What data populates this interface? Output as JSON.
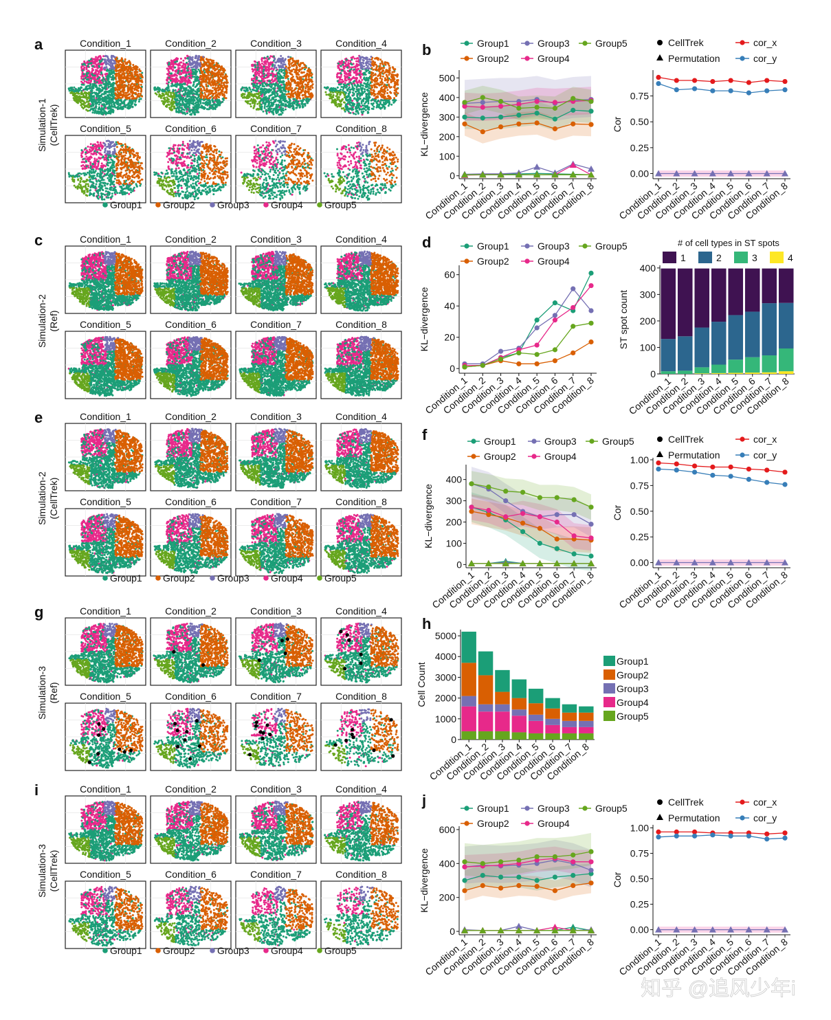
{
  "colors": {
    "Group1": "#1b9e77",
    "Group2": "#d95f02",
    "Group3": "#7570b3",
    "Group4": "#e7298a",
    "Group5": "#66a61e",
    "cor_x": "#e41a1c",
    "cor_y": "#377eb8",
    "perm": "#7570b3",
    "st1": "#3f1251",
    "st2": "#2c668e",
    "st3": "#35b779",
    "st4": "#fde725"
  },
  "conditions": [
    "Condition_1",
    "Condition_2",
    "Condition_3",
    "Condition_4",
    "Condition_5",
    "Condition_6",
    "Condition_7",
    "Condition_8"
  ],
  "group_legend": [
    "Group1",
    "Group2",
    "Group3",
    "Group4",
    "Group5"
  ],
  "panels": {
    "a": {
      "letter": "a",
      "row_label_1": "Simulation-1",
      "row_label_2": "(CellTrek)"
    },
    "c": {
      "letter": "c",
      "row_label_1": "Simulation-2",
      "row_label_2": "(Ref)"
    },
    "e": {
      "letter": "e",
      "row_label_1": "Simulation-2",
      "row_label_2": "(CellTrek)"
    },
    "g": {
      "letter": "g",
      "row_label_1": "Simulation-3",
      "row_label_2": "(Ref)"
    },
    "i": {
      "letter": "i",
      "row_label_1": "Simulation-3",
      "row_label_2": "(CellTrek)"
    },
    "b": {
      "letter": "b"
    },
    "d": {
      "letter": "d"
    },
    "f": {
      "letter": "f"
    },
    "h": {
      "letter": "h"
    },
    "j": {
      "letter": "j"
    }
  },
  "legend_labels": {
    "celltrek": "CellTrek",
    "permutation": "Permutation",
    "cor_x": "cor_x",
    "cor_y": "cor_y",
    "st_title": "# of cell types in ST spots",
    "st_levels": [
      "1",
      "2",
      "3",
      "4"
    ]
  },
  "axis_labels": {
    "kl": "KL−divergence",
    "cor": "Cor",
    "st": "ST spot count",
    "cellcount": "Cell Count"
  },
  "watermark": "知乎 @追风少年i",
  "chart_data": [
    {
      "id": "b_kl",
      "type": "line",
      "title": "",
      "ylabel": "KL−divergence",
      "ylim": [
        -15,
        540
      ],
      "yticks": [
        0,
        100,
        200,
        300,
        400,
        500
      ],
      "x": [
        "Condition_1",
        "Condition_2",
        "Condition_3",
        "Condition_4",
        "Condition_5",
        "Condition_6",
        "Condition_7",
        "Condition_8"
      ],
      "series": [
        {
          "name": "Group1",
          "values": [
            300,
            295,
            300,
            310,
            320,
            290,
            335,
            330
          ],
          "band": [
            60,
            60
          ]
        },
        {
          "name": "Group2",
          "values": [
            265,
            225,
            250,
            265,
            270,
            240,
            265,
            262
          ],
          "band": [
            60,
            60
          ]
        },
        {
          "name": "Group3",
          "values": [
            370,
            375,
            380,
            380,
            390,
            370,
            385,
            390
          ],
          "band": [
            90,
            120
          ]
        },
        {
          "name": "Group4",
          "values": [
            355,
            350,
            355,
            365,
            380,
            375,
            380,
            385
          ],
          "band": [
            70,
            70
          ]
        },
        {
          "name": "Group5",
          "values": [
            375,
            400,
            380,
            345,
            350,
            345,
            395,
            380
          ],
          "band": [
            60,
            60
          ]
        }
      ],
      "permutation": [
        {
          "name": "Group1",
          "values": [
            5,
            5,
            8,
            10,
            12,
            10,
            8,
            5
          ]
        },
        {
          "name": "Group2",
          "values": [
            5,
            5,
            5,
            5,
            5,
            5,
            5,
            5
          ]
        },
        {
          "name": "Group3",
          "values": [
            8,
            10,
            10,
            15,
            45,
            15,
            60,
            35
          ]
        },
        {
          "name": "Group4",
          "values": [
            3,
            5,
            5,
            5,
            5,
            5,
            55,
            5
          ]
        },
        {
          "name": "Group5",
          "values": [
            5,
            5,
            5,
            5,
            5,
            5,
            5,
            5
          ]
        }
      ]
    },
    {
      "id": "b_cor",
      "type": "line",
      "title": "",
      "ylabel": "Cor",
      "ylim": [
        -0.05,
        1.0
      ],
      "yticks": [
        0.0,
        0.25,
        0.5,
        0.75
      ],
      "x": [
        "Condition_1",
        "Condition_2",
        "Condition_3",
        "Condition_4",
        "Condition_5",
        "Condition_6",
        "Condition_7",
        "Condition_8"
      ],
      "series": [
        {
          "name": "cor_x",
          "values": [
            0.93,
            0.9,
            0.9,
            0.89,
            0.9,
            0.88,
            0.9,
            0.89
          ]
        },
        {
          "name": "cor_y",
          "values": [
            0.87,
            0.81,
            0.82,
            0.8,
            0.8,
            0.78,
            0.8,
            0.81
          ]
        }
      ],
      "permutation": [
        {
          "name": "perm",
          "values": [
            0.0,
            0.0,
            0.0,
            0.0,
            0.0,
            0.0,
            0.0,
            0.0
          ],
          "band": [
            0.03,
            0.03
          ]
        }
      ]
    },
    {
      "id": "d_kl",
      "type": "line",
      "title": "",
      "ylabel": "KL−divergence",
      "ylim": [
        -3,
        66
      ],
      "yticks": [
        0,
        20,
        40,
        60
      ],
      "x": [
        "Condition_1",
        "Condition_2",
        "Condition_3",
        "Condition_4",
        "Condition_5",
        "Condition_6",
        "Condition_7",
        "Condition_8"
      ],
      "series": [
        {
          "name": "Group1",
          "values": [
            1,
            2,
            7,
            10,
            31,
            42,
            37,
            61
          ]
        },
        {
          "name": "Group2",
          "values": [
            1,
            2,
            5,
            3,
            3,
            5,
            10,
            17
          ]
        },
        {
          "name": "Group3",
          "values": [
            3,
            3,
            11,
            13,
            26,
            34,
            51,
            37
          ]
        },
        {
          "name": "Group4",
          "values": [
            2,
            2,
            7,
            12,
            15,
            31,
            39,
            53
          ]
        },
        {
          "name": "Group5",
          "values": [
            1,
            2,
            6,
            10,
            9,
            12,
            27,
            29
          ]
        }
      ]
    },
    {
      "id": "d_st",
      "type": "bar",
      "title": "# of cell types in ST spots",
      "ylabel": "ST spot count",
      "ylim": [
        0,
        410
      ],
      "yticks": [
        0,
        100,
        200,
        300,
        400
      ],
      "categories": [
        "Condition_1",
        "Condition_2",
        "Condition_3",
        "Condition_4",
        "Condition_5",
        "Condition_6",
        "Condition_7",
        "Condition_8"
      ],
      "series": [
        {
          "name": "4",
          "values": [
            0,
            0,
            2,
            3,
            4,
            5,
            6,
            10
          ]
        },
        {
          "name": "3",
          "values": [
            10,
            12,
            23,
            32,
            50,
            58,
            64,
            86
          ]
        },
        {
          "name": "2",
          "values": [
            122,
            130,
            150,
            162,
            168,
            172,
            197,
            172
          ]
        },
        {
          "name": "1",
          "values": [
            266,
            256,
            223,
            201,
            176,
            163,
            131,
            130
          ]
        }
      ]
    },
    {
      "id": "f_kl",
      "type": "line",
      "title": "",
      "ylabel": "KL−divergence",
      "ylim": [
        -15,
        470
      ],
      "yticks": [
        0,
        100,
        200,
        300,
        400
      ],
      "x": [
        "Condition_1",
        "Condition_2",
        "Condition_3",
        "Condition_4",
        "Condition_5",
        "Condition_6",
        "Condition_7",
        "Condition_8"
      ],
      "series": [
        {
          "name": "Group1",
          "values": [
            270,
            245,
            210,
            155,
            100,
            75,
            50,
            40
          ],
          "band": [
            70,
            70
          ]
        },
        {
          "name": "Group2",
          "values": [
            250,
            235,
            220,
            195,
            170,
            120,
            120,
            115
          ],
          "band": [
            60,
            60
          ]
        },
        {
          "name": "Group3",
          "values": [
            380,
            355,
            300,
            250,
            225,
            235,
            235,
            190
          ],
          "band": [
            60,
            80
          ]
        },
        {
          "name": "Group4",
          "values": [
            270,
            255,
            225,
            240,
            225,
            200,
            135,
            125
          ],
          "band": [
            60,
            60
          ]
        },
        {
          "name": "Group5",
          "values": [
            380,
            365,
            345,
            340,
            315,
            315,
            305,
            270
          ],
          "band": [
            60,
            60
          ]
        }
      ],
      "permutation": [
        {
          "name": "Group1",
          "values": [
            5,
            5,
            15,
            5,
            5,
            5,
            5,
            5
          ]
        },
        {
          "name": "Group2",
          "values": [
            5,
            5,
            5,
            5,
            5,
            5,
            5,
            5
          ]
        },
        {
          "name": "Group3",
          "values": [
            5,
            5,
            10,
            5,
            5,
            5,
            5,
            5
          ]
        },
        {
          "name": "Group4",
          "values": [
            5,
            5,
            5,
            5,
            5,
            5,
            5,
            5
          ]
        },
        {
          "name": "Group5",
          "values": [
            5,
            5,
            5,
            5,
            5,
            5,
            5,
            5
          ]
        }
      ]
    },
    {
      "id": "f_cor",
      "type": "line",
      "title": "",
      "ylabel": "Cor",
      "ylim": [
        -0.05,
        1.02
      ],
      "yticks": [
        0.0,
        0.25,
        0.5,
        0.75,
        1.0
      ],
      "x": [
        "Condition_1",
        "Condition_2",
        "Condition_3",
        "Condition_4",
        "Condition_5",
        "Condition_6",
        "Condition_7",
        "Condition_8"
      ],
      "series": [
        {
          "name": "cor_x",
          "values": [
            0.97,
            0.96,
            0.94,
            0.93,
            0.93,
            0.91,
            0.9,
            0.88
          ]
        },
        {
          "name": "cor_y",
          "values": [
            0.91,
            0.9,
            0.88,
            0.85,
            0.84,
            0.81,
            0.78,
            0.76
          ]
        }
      ],
      "permutation": [
        {
          "name": "perm",
          "values": [
            0.0,
            0.0,
            0.0,
            0.0,
            0.0,
            0.0,
            0.0,
            0.0
          ],
          "band": [
            0.03,
            0.03
          ]
        }
      ]
    },
    {
      "id": "h_cells",
      "type": "bar",
      "title": "",
      "ylabel": "Cell Count",
      "ylim": [
        0,
        5300
      ],
      "yticks": [
        0,
        1000,
        2000,
        3000,
        4000,
        5000
      ],
      "categories": [
        "Condition_1",
        "Condition_2",
        "Condition_3",
        "Condition_4",
        "Condition_5",
        "Condition_6",
        "Condition_7",
        "Condition_8"
      ],
      "series": [
        {
          "name": "Group5",
          "values": [
            400,
            400,
            400,
            350,
            300,
            300,
            300,
            300
          ]
        },
        {
          "name": "Group4",
          "values": [
            1200,
            950,
            950,
            800,
            600,
            400,
            300,
            300
          ]
        },
        {
          "name": "Group3",
          "values": [
            500,
            350,
            350,
            300,
            300,
            300,
            300,
            300
          ]
        },
        {
          "name": "Group2",
          "values": [
            1600,
            1400,
            600,
            550,
            550,
            500,
            400,
            400
          ]
        },
        {
          "name": "Group1",
          "values": [
            1500,
            1150,
            1050,
            900,
            700,
            500,
            400,
            300
          ]
        }
      ]
    },
    {
      "id": "j_kl",
      "type": "line",
      "title": "",
      "ylabel": "KL−divergence",
      "ylim": [
        -20,
        620
      ],
      "yticks": [
        0,
        200,
        400,
        600
      ],
      "x": [
        "Condition_1",
        "Condition_2",
        "Condition_3",
        "Condition_4",
        "Condition_5",
        "Condition_6",
        "Condition_7",
        "Condition_8"
      ],
      "series": [
        {
          "name": "Group1",
          "values": [
            300,
            330,
            320,
            320,
            300,
            320,
            330,
            340
          ],
          "band": [
            60,
            60
          ]
        },
        {
          "name": "Group2",
          "values": [
            240,
            270,
            255,
            270,
            265,
            240,
            270,
            285
          ],
          "band": [
            60,
            60
          ]
        },
        {
          "name": "Group3",
          "values": [
            380,
            390,
            385,
            390,
            400,
            420,
            400,
            360
          ],
          "band": [
            100,
            120
          ]
        },
        {
          "name": "Group4",
          "values": [
            380,
            385,
            390,
            400,
            420,
            430,
            410,
            410
          ],
          "band": [
            70,
            70
          ]
        },
        {
          "name": "Group5",
          "values": [
            410,
            400,
            410,
            420,
            440,
            440,
            450,
            470
          ],
          "band": [
            80,
            110
          ]
        }
      ],
      "permutation": [
        {
          "name": "Group1",
          "values": [
            5,
            5,
            5,
            5,
            5,
            5,
            25,
            5
          ]
        },
        {
          "name": "Group2",
          "values": [
            5,
            5,
            5,
            5,
            5,
            5,
            5,
            5
          ]
        },
        {
          "name": "Group3",
          "values": [
            10,
            5,
            5,
            30,
            5,
            5,
            5,
            10
          ]
        },
        {
          "name": "Group4",
          "values": [
            5,
            5,
            5,
            5,
            5,
            25,
            5,
            5
          ]
        },
        {
          "name": "Group5",
          "values": [
            5,
            5,
            5,
            5,
            5,
            5,
            5,
            5
          ]
        }
      ]
    },
    {
      "id": "j_cor",
      "type": "line",
      "title": "",
      "ylabel": "Cor",
      "ylim": [
        -0.05,
        1.03
      ],
      "yticks": [
        0.0,
        0.25,
        0.5,
        0.75,
        1.0
      ],
      "x": [
        "Condition_1",
        "Condition_2",
        "Condition_3",
        "Condition_4",
        "Condition_5",
        "Condition_6",
        "Condition_7",
        "Condition_8"
      ],
      "series": [
        {
          "name": "cor_x",
          "values": [
            0.96,
            0.96,
            0.96,
            0.95,
            0.95,
            0.95,
            0.94,
            0.95
          ]
        },
        {
          "name": "cor_y",
          "values": [
            0.91,
            0.92,
            0.92,
            0.93,
            0.92,
            0.92,
            0.89,
            0.9
          ]
        }
      ],
      "permutation": [
        {
          "name": "perm",
          "values": [
            0.0,
            0.0,
            0.0,
            0.0,
            0.0,
            0.0,
            0.0,
            0.0
          ],
          "band": [
            0.03,
            0.03
          ]
        }
      ]
    }
  ]
}
